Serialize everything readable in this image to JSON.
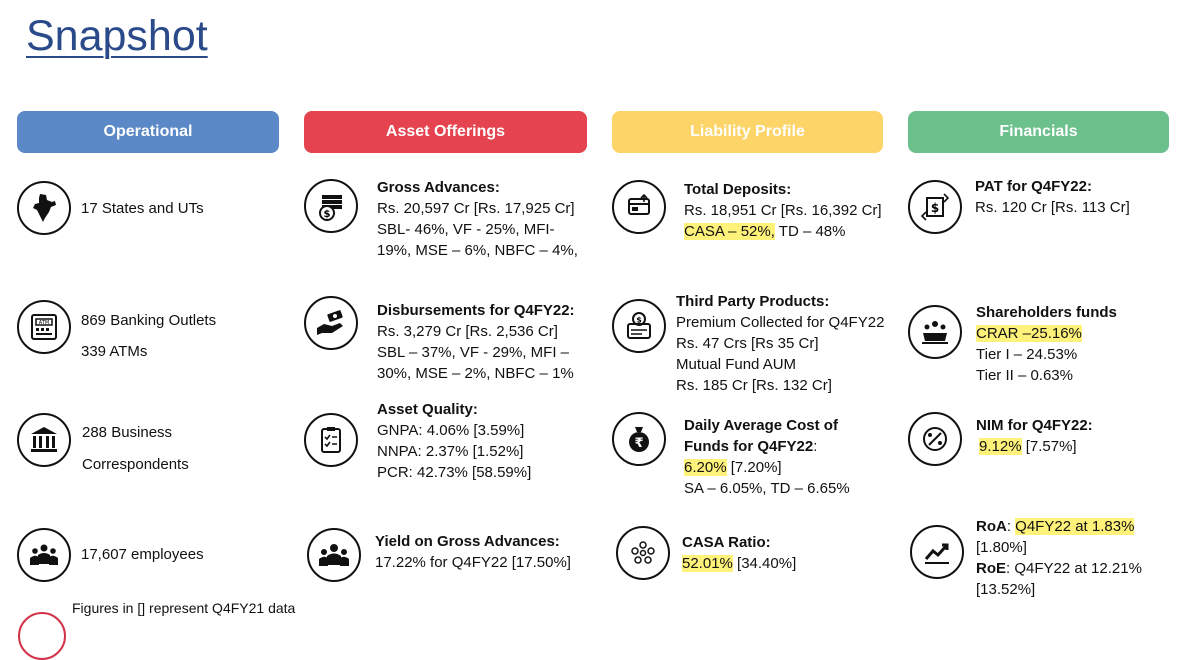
{
  "title": "Snapshot",
  "headers": {
    "operational": {
      "label": "Operational",
      "color": "#5b88c6"
    },
    "asset": {
      "label": "Asset Offerings",
      "color": "#e4434f"
    },
    "liability": {
      "label": "Liability Profile",
      "color": "#fcd468"
    },
    "financials": {
      "label": "Financials",
      "color": "#6cc08c"
    }
  },
  "operational": {
    "states": "17 States and UTs",
    "outlets": "869 Banking Outlets",
    "atms": "339 ATMs",
    "bc1": "288 Business",
    "bc2": "Correspondents",
    "employees": "17,607 employees"
  },
  "asset": {
    "gross_title": "Gross Advances:",
    "gross_l1": "Rs. 20,597 Cr [Rs. 17,925 Cr]",
    "gross_l2": "SBL- 46%, VF - 25%, MFI-",
    "gross_l3": "19%, MSE – 6%, NBFC – 4%,",
    "disb_title": "Disbursements for Q4FY22:",
    "disb_l1": "Rs. 3,279 Cr [Rs. 2,536 Cr]",
    "disb_l2": "SBL – 37%, VF - 29%, MFI –",
    "disb_l3": "30%, MSE – 2%, NBFC –  1%",
    "aq_title": "Asset Quality:",
    "aq_l1": "GNPA: 4.06% [3.59%]",
    "aq_l2": "NNPA: 2.37% [1.52%]",
    "aq_l3": "PCR: 42.73% [58.59%]",
    "yield_title": "Yield on Gross Advances:",
    "yield_l1": "17.22% for Q4FY22 [17.50%]"
  },
  "liability": {
    "dep_title": "Total Deposits:",
    "dep_l1": "Rs. 18,951 Cr [Rs. 16,392 Cr]",
    "dep_hl": "CASA – 52%,",
    "dep_rest": " TD – 48%",
    "tpp_title": "Third Party Products:",
    "tpp_l1": "Premium Collected for Q4FY22",
    "tpp_l2": "Rs. 47 Crs [Rs 35 Cr]",
    "tpp_l3": "Mutual Fund AUM",
    "tpp_l4": "Rs. 185 Cr [Rs. 132 Cr]",
    "cof_title1": "Daily Average Cost of",
    "cof_title2": "Funds for Q4FY22",
    "cof_colon": ":",
    "cof_hl": "6.20%",
    "cof_rest": " [7.20%]",
    "cof_l3": "SA – 6.05%, TD – 6.65%",
    "casa_title": "CASA Ratio:",
    "casa_hl": "52.01%",
    "casa_rest": "  [34.40%]"
  },
  "financials": {
    "pat_title": "PAT for Q4FY22:",
    "pat_l1": "Rs. 120 Cr [Rs. 113 Cr]",
    "sh_title": "Shareholders funds",
    "sh_hl": "CRAR –25.16%",
    "sh_l2": "Tier I – 24.53%",
    "sh_l3": "Tier II – 0.63%",
    "nim_title": "NIM for Q4FY22:",
    "nim_hl": "9.12%",
    "nim_rest": " [7.57%]",
    "roa_label": "RoA",
    "roa_colon": ": ",
    "roa_hl": "Q4FY22 at 1.83%",
    "roa_l2": "[1.80%]",
    "roe_label": "RoE",
    "roe_rest": ": Q4FY22 at 12.21%",
    "roe_l2": "[13.52%]"
  },
  "footnote": "Figures in [] represent Q4FY21 data"
}
